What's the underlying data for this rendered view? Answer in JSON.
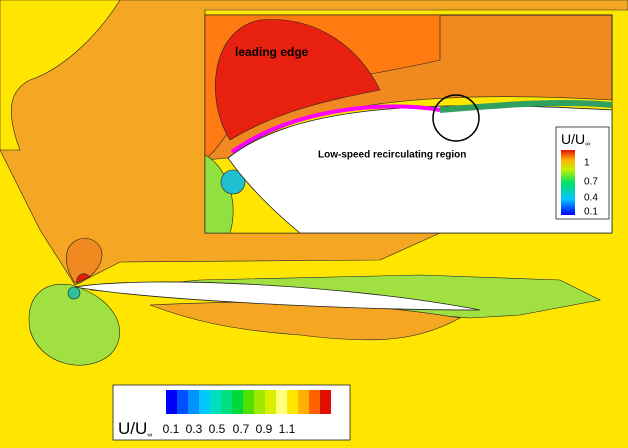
{
  "inset": {
    "annotations": [
      "leading edge",
      "Low-speed recirculating region"
    ],
    "legend": {
      "title": "U/U",
      "title_sub": "∞",
      "labels": [
        "1",
        "0.7",
        "0.4",
        "0.1"
      ]
    }
  },
  "legend": {
    "title": "U/U",
    "title_sub": "∞",
    "labels": [
      "0.1",
      "0.3",
      "0.5",
      "0.7",
      "0.9",
      "1.1"
    ]
  }
}
